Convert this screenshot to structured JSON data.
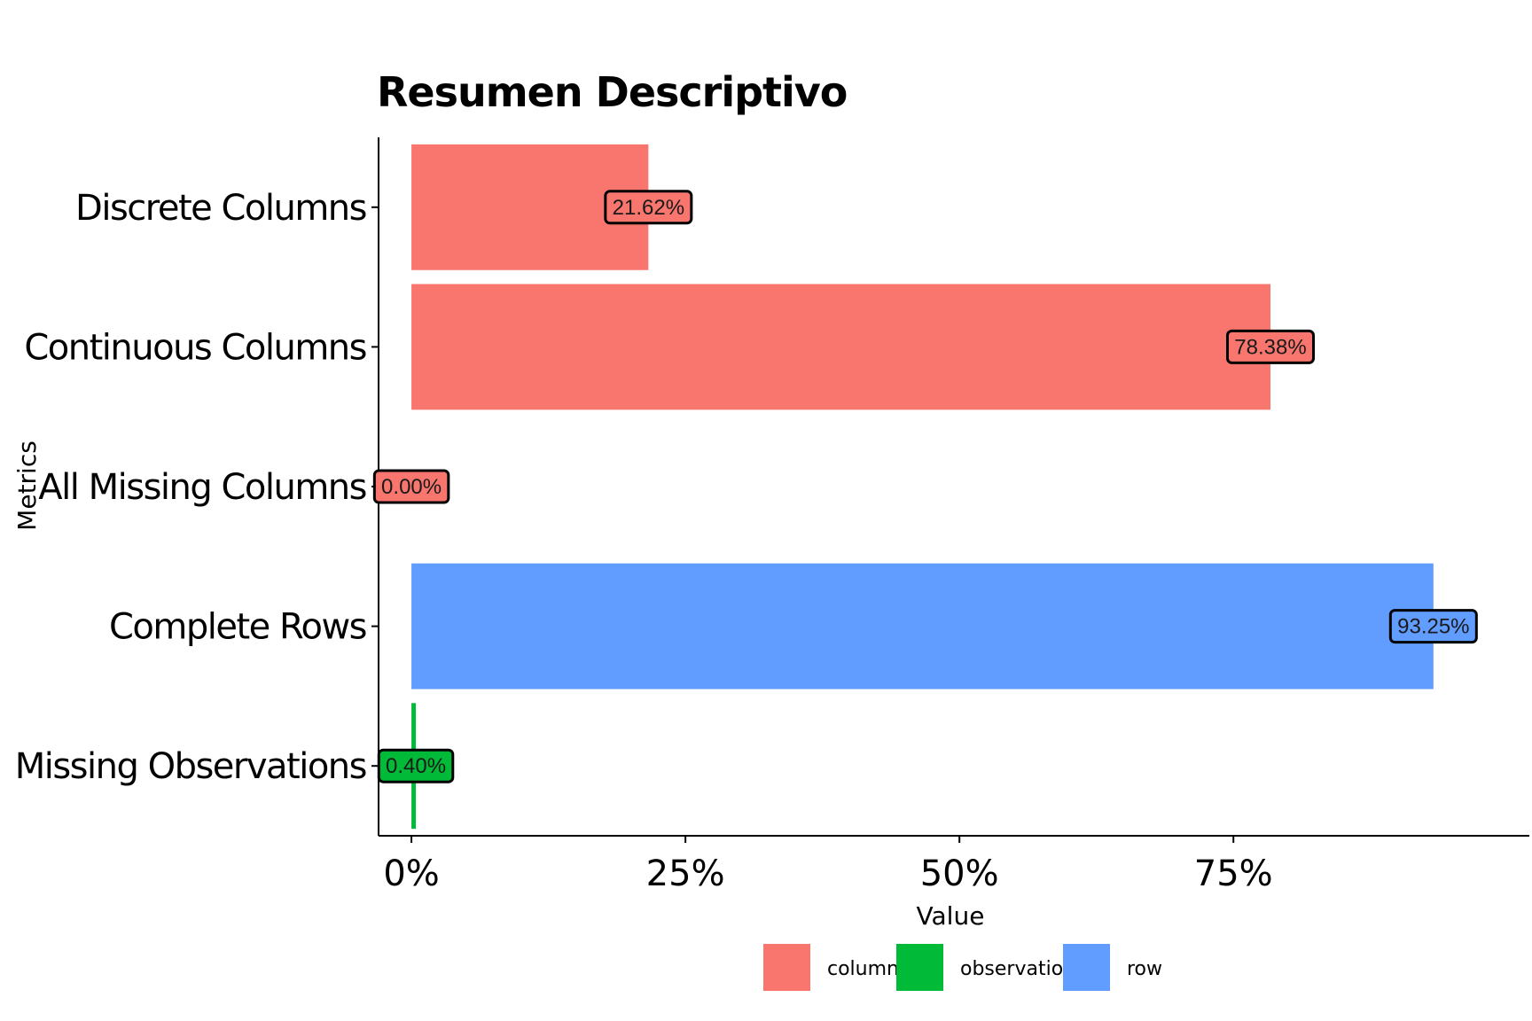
{
  "chart_data": {
    "type": "bar",
    "orientation": "horizontal",
    "title": "Resumen Descriptivo",
    "xlabel": "Value",
    "ylabel": "Metrics",
    "xlim": [
      -0.03,
      1.02
    ],
    "x_ticks": [
      0,
      0.25,
      0.5,
      0.75
    ],
    "x_tick_labels": [
      "0%",
      "25%",
      "50%",
      "75%"
    ],
    "grid": false,
    "legend_position": "bottom",
    "categories": [
      "Discrete Columns",
      "Continuous Columns",
      "All Missing Columns",
      "Complete Rows",
      "Missing Observations"
    ],
    "values": [
      0.2162,
      0.7838,
      0.0,
      0.9325,
      0.004
    ],
    "value_labels": [
      "21.62%",
      "78.38%",
      "0.00%",
      "93.25%",
      "0.40%"
    ],
    "groups": [
      "column",
      "column",
      "column",
      "row",
      "observation"
    ],
    "legend": [
      {
        "name": "column",
        "color": "#F8766D"
      },
      {
        "name": "observation",
        "color": "#00BA38"
      },
      {
        "name": "row",
        "color": "#619CFF"
      }
    ]
  }
}
